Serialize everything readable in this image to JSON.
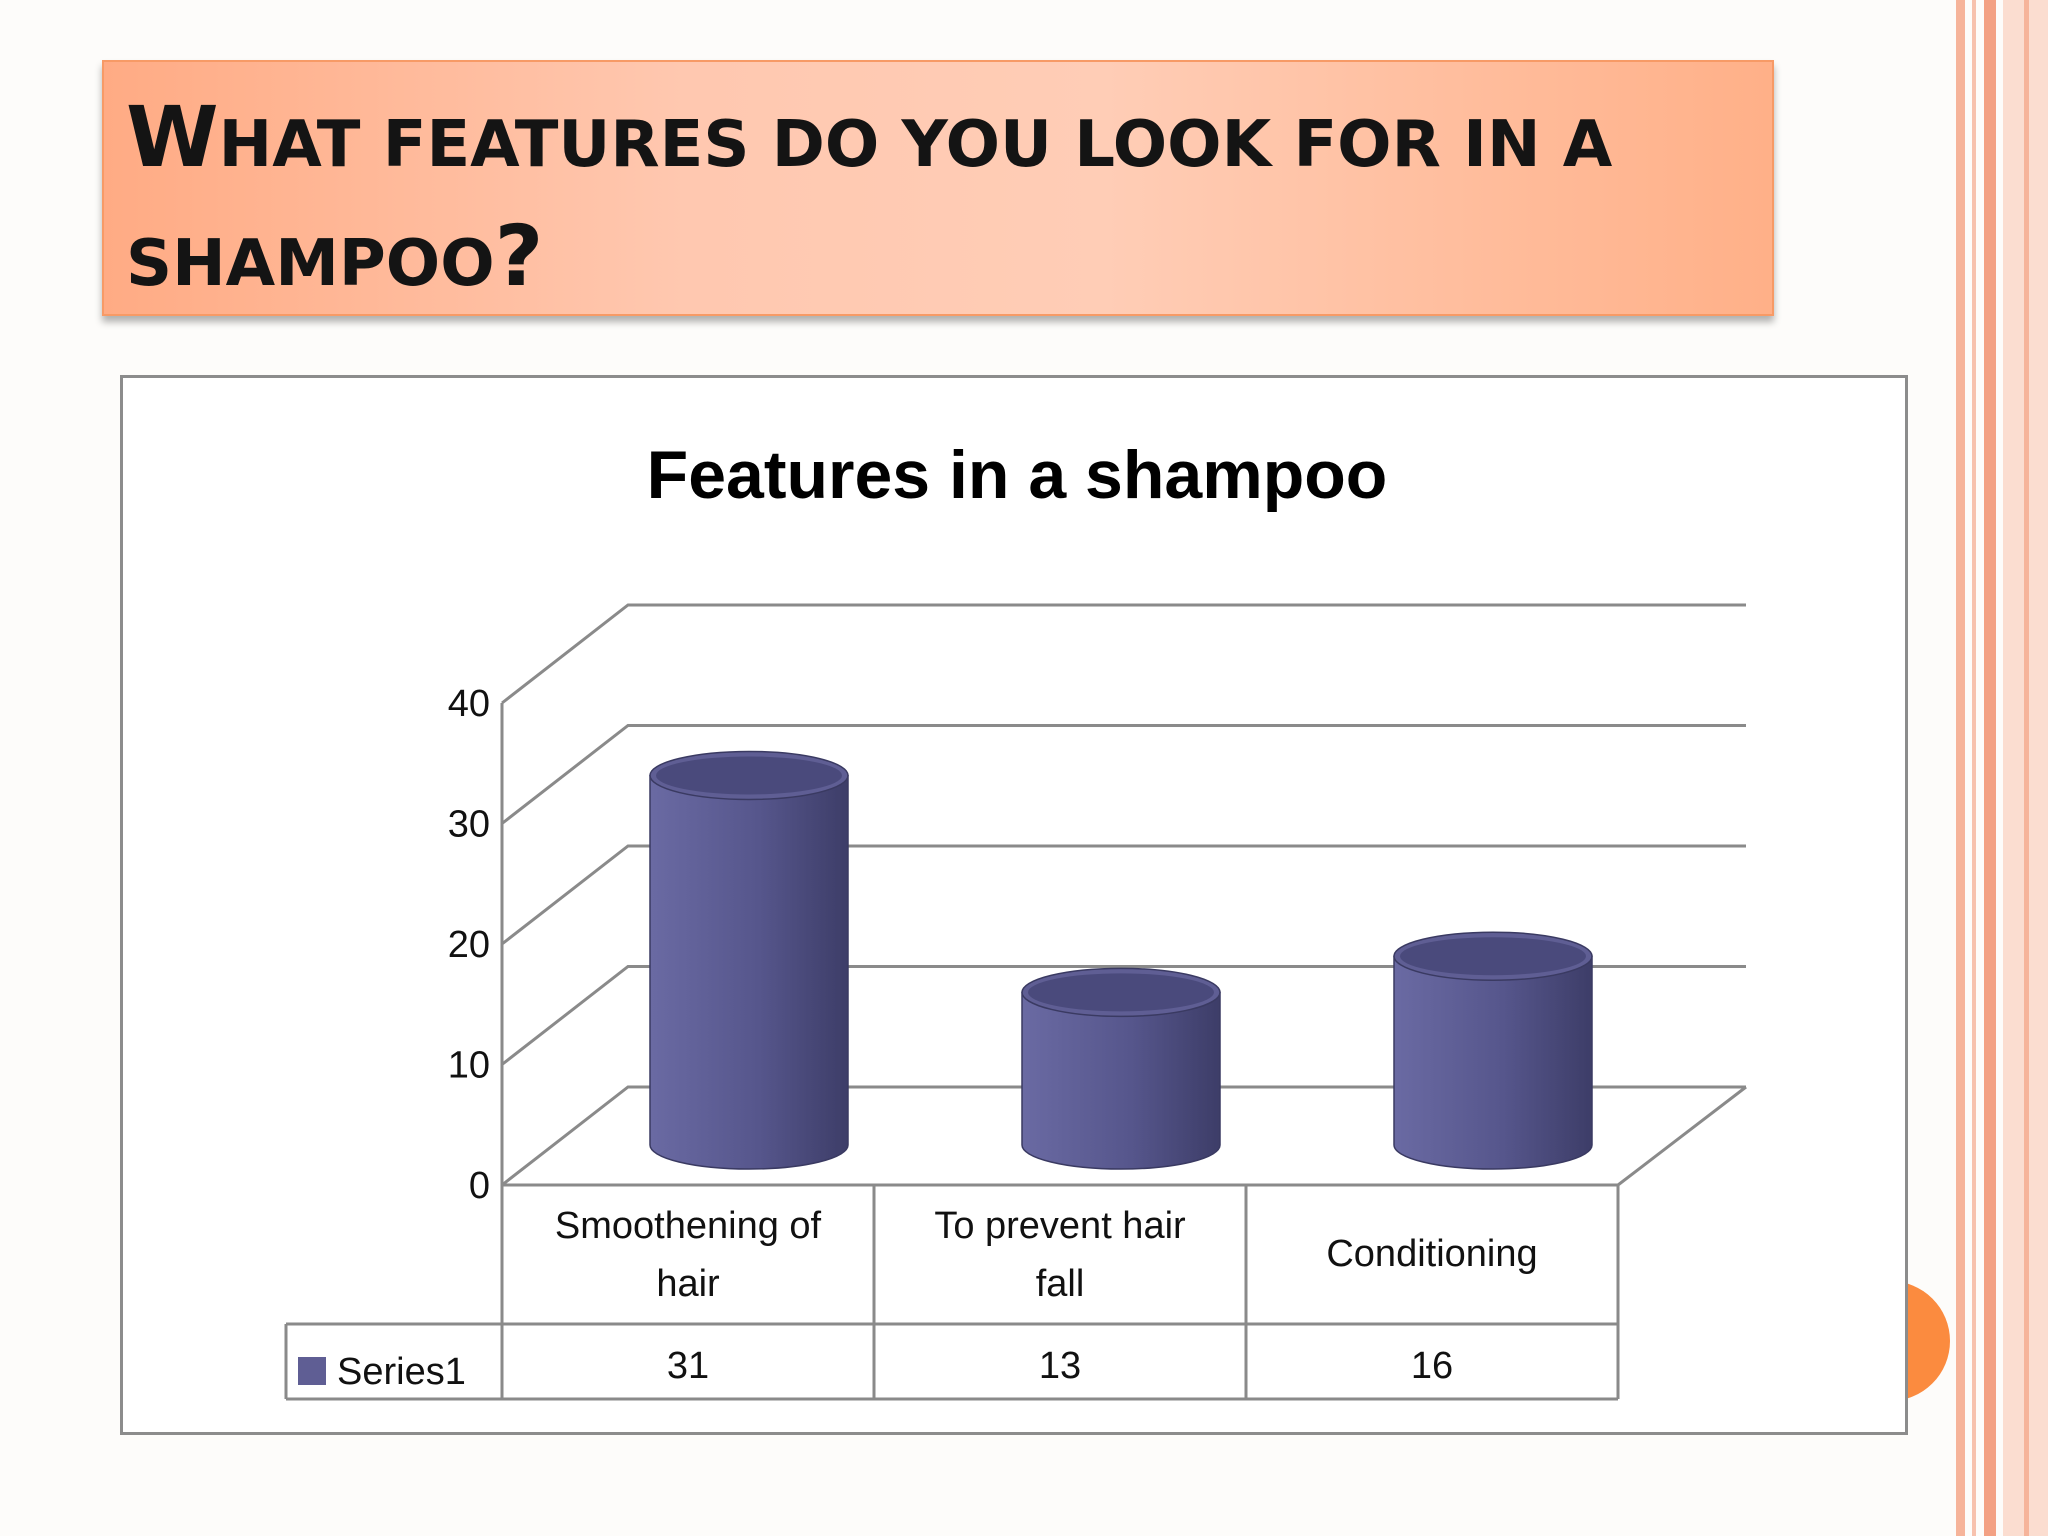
{
  "slide": {
    "title_line1_first": "W",
    "title_line1_rest": "HAT FEATURES DO YOU LOOK FOR IN A",
    "title_line2_rest": "SHAMPOO",
    "title_line2_end": "?"
  },
  "colors": {
    "bar": "#5f5e94",
    "title_bg": "#ffc0a3",
    "accent": "#fb8b3f",
    "border_stripe": "#f6b49a"
  },
  "chart_data": {
    "type": "bar",
    "style": "3d-cylinder",
    "title": "Features in a shampoo",
    "categories": [
      [
        "Smoothening of",
        "hair"
      ],
      [
        "To prevent hair",
        "fall"
      ],
      [
        "Conditioning"
      ]
    ],
    "series": [
      {
        "name": "Series1",
        "values": [
          31,
          13,
          16
        ]
      }
    ],
    "ylim": [
      0,
      40
    ],
    "yticks": [
      0,
      10,
      20,
      30,
      40
    ],
    "grid": true,
    "legend": "data-table-left",
    "data_table": true
  }
}
